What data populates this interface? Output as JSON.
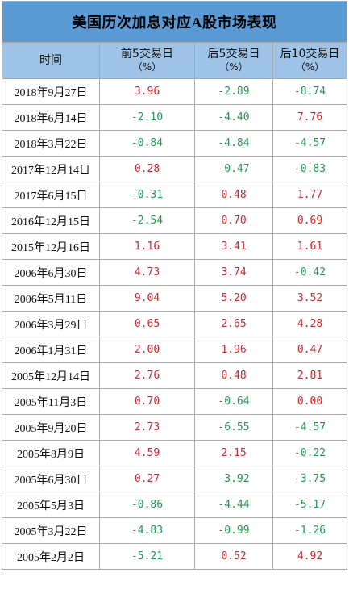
{
  "title": "美国历次加息对应A股市场表现",
  "headers": [
    {
      "main": "时间",
      "sub": ""
    },
    {
      "main": "前5交易日",
      "sub": "（%）"
    },
    {
      "main": "后5交易日",
      "sub": "（%）"
    },
    {
      "main": "后10交易日",
      "sub": "（%）"
    }
  ],
  "rows": [
    {
      "date": "2018年9月27日",
      "pre5": "3.96",
      "post5": "-2.89",
      "post10": "-8.74"
    },
    {
      "date": "2018年6月14日",
      "pre5": "-2.10",
      "post5": "-4.40",
      "post10": "7.76"
    },
    {
      "date": "2018年3月22日",
      "pre5": "-0.84",
      "post5": "-4.84",
      "post10": "-4.57"
    },
    {
      "date": "2017年12月14日",
      "pre5": "0.28",
      "post5": "-0.47",
      "post10": "-0.83"
    },
    {
      "date": "2017年6月15日",
      "pre5": "-0.31",
      "post5": "0.48",
      "post10": "1.77"
    },
    {
      "date": "2016年12月15日",
      "pre5": "-2.54",
      "post5": "0.70",
      "post10": "0.69"
    },
    {
      "date": "2015年12月16日",
      "pre5": "1.16",
      "post5": "3.41",
      "post10": "1.61"
    },
    {
      "date": "2006年6月30日",
      "pre5": "4.73",
      "post5": "3.74",
      "post10": "-0.42"
    },
    {
      "date": "2006年5月11日",
      "pre5": "9.04",
      "post5": "5.20",
      "post10": "3.52"
    },
    {
      "date": "2006年3月29日",
      "pre5": "0.65",
      "post5": "2.65",
      "post10": "4.28"
    },
    {
      "date": "2006年1月31日",
      "pre5": "2.00",
      "post5": "1.96",
      "post10": "0.47"
    },
    {
      "date": "2005年12月14日",
      "pre5": "2.76",
      "post5": "0.48",
      "post10": "2.81"
    },
    {
      "date": "2005年11月3日",
      "pre5": "0.70",
      "post5": "-0.64",
      "post10": "0.00"
    },
    {
      "date": "2005年9月20日",
      "pre5": "2.73",
      "post5": "-6.55",
      "post10": "-4.57"
    },
    {
      "date": "2005年8月9日",
      "pre5": "4.59",
      "post5": "2.15",
      "post10": "-0.22"
    },
    {
      "date": "2005年6月30日",
      "pre5": "0.27",
      "post5": "-3.92",
      "post10": "-3.75"
    },
    {
      "date": "2005年5月3日",
      "pre5": "-0.86",
      "post5": "-4.44",
      "post10": "-5.17"
    },
    {
      "date": "2005年3月22日",
      "pre5": "-4.83",
      "post5": "-0.99",
      "post10": "-1.26"
    },
    {
      "date": "2005年2月2日",
      "pre5": "-5.21",
      "post5": "0.52",
      "post10": "4.92"
    }
  ],
  "colors": {
    "title_bg": "#5b9bd5",
    "header_bg": "#9ec3e6",
    "positive": "#d0262a",
    "negative": "#1e9b4e",
    "border": "#a8a8a8"
  }
}
